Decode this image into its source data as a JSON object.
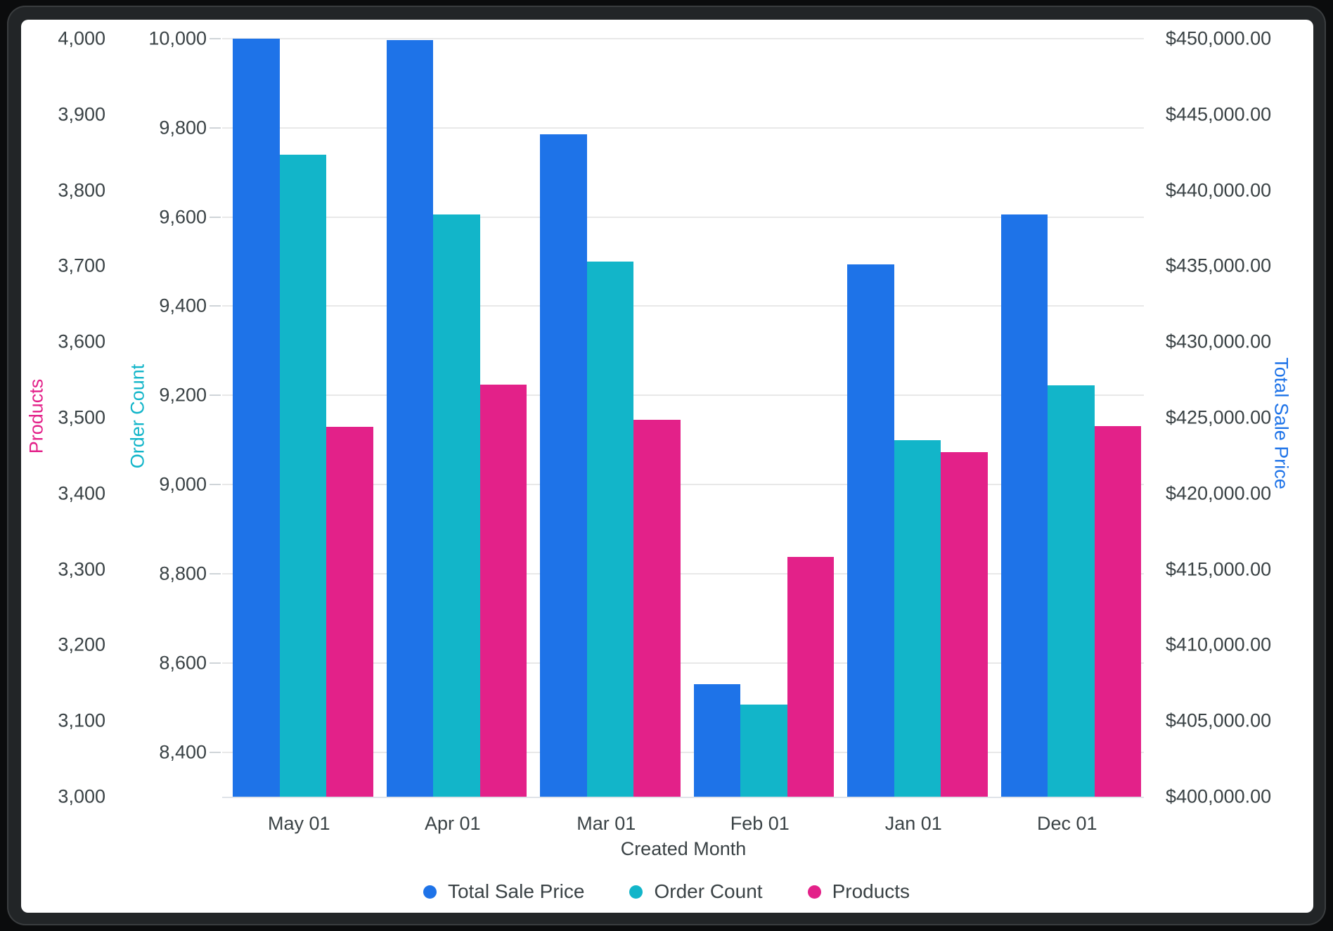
{
  "chart_data": {
    "type": "bar",
    "title": "",
    "xlabel": "Created Month",
    "grid": "on",
    "legend_position": "bottom",
    "categories": [
      "May 01",
      "Apr 01",
      "Mar 01",
      "Feb 01",
      "Jan 01",
      "Dec 01"
    ],
    "series": [
      {
        "name": "Total Sale Price",
        "axis": "price",
        "color": "#1e73e8",
        "values": [
          450000,
          449900,
          443700,
          407400,
          435100,
          438400
        ]
      },
      {
        "name": "Order Count",
        "axis": "orders",
        "color": "#12b5c9",
        "values": [
          9740,
          9605,
          9500,
          8507,
          9100,
          9222
        ]
      },
      {
        "name": "Products",
        "axis": "products",
        "color": "#e32189",
        "values": [
          3488,
          3544,
          3497,
          3316,
          3455,
          3489
        ]
      }
    ],
    "axes": {
      "products": {
        "title": "Products",
        "color": "#e32189",
        "side": "left-outer",
        "min": 3000,
        "max": 4000,
        "tick_values": [
          4000,
          3900,
          3800,
          3700,
          3600,
          3500,
          3400,
          3300,
          3200,
          3100,
          3000
        ],
        "tick_labels": [
          "4,000",
          "3,900",
          "3,800",
          "3,700",
          "3,600",
          "3,500",
          "3,400",
          "3,300",
          "3,200",
          "3,100",
          "3,000"
        ]
      },
      "orders": {
        "title": "Order Count",
        "color": "#12b5c9",
        "side": "left-inner",
        "min": 8300,
        "max": 10000,
        "tick_values": [
          10000,
          9800,
          9600,
          9400,
          9200,
          9000,
          8800,
          8600,
          8400
        ],
        "tick_labels": [
          "10,000",
          "9,800",
          "9,600",
          "9,400",
          "9,200",
          "9,000",
          "8,800",
          "8,600",
          "8,400"
        ]
      },
      "price": {
        "title": "Total Sale Price",
        "color": "#1e73e8",
        "side": "right",
        "min": 400000,
        "max": 450000,
        "tick_values": [
          450000,
          445000,
          440000,
          435000,
          430000,
          425000,
          420000,
          415000,
          410000,
          405000,
          400000
        ],
        "tick_labels": [
          "$450,000.00",
          "$445,000.00",
          "$440,000.00",
          "$435,000.00",
          "$430,000.00",
          "$425,000.00",
          "$420,000.00",
          "$415,000.00",
          "$410,000.00",
          "$405,000.00",
          "$400,000.00"
        ]
      }
    },
    "legend": {
      "items": [
        "Total Sale Price",
        "Order Count",
        "Products"
      ]
    }
  }
}
